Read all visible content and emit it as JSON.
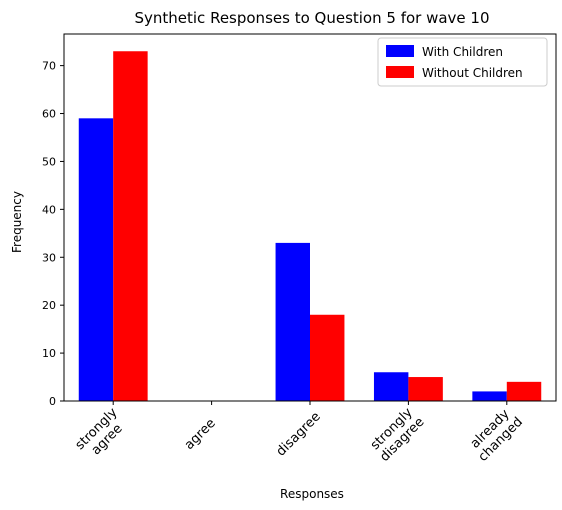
{
  "chart_data": {
    "type": "bar",
    "title": "Synthetic Responses to Question 5 for wave 10",
    "xlabel": "Responses",
    "ylabel": "Frequency",
    "categories": [
      [
        "strongly",
        "agree"
      ],
      [
        "agree"
      ],
      [
        "disagree"
      ],
      [
        "strongly",
        "disagree"
      ],
      [
        "already",
        "changed"
      ]
    ],
    "series": [
      {
        "name": "With Children",
        "color": "#0000ff",
        "values": [
          59,
          0,
          33,
          6,
          2
        ]
      },
      {
        "name": "Without Children",
        "color": "#ff0000",
        "values": [
          73,
          0,
          18,
          5,
          4
        ]
      }
    ],
    "ylim": [
      0,
      76.6
    ],
    "yticks": [
      0,
      10,
      20,
      30,
      40,
      50,
      60,
      70
    ],
    "grid": false,
    "legend": "top-right",
    "xtick_rotation": 45
  }
}
